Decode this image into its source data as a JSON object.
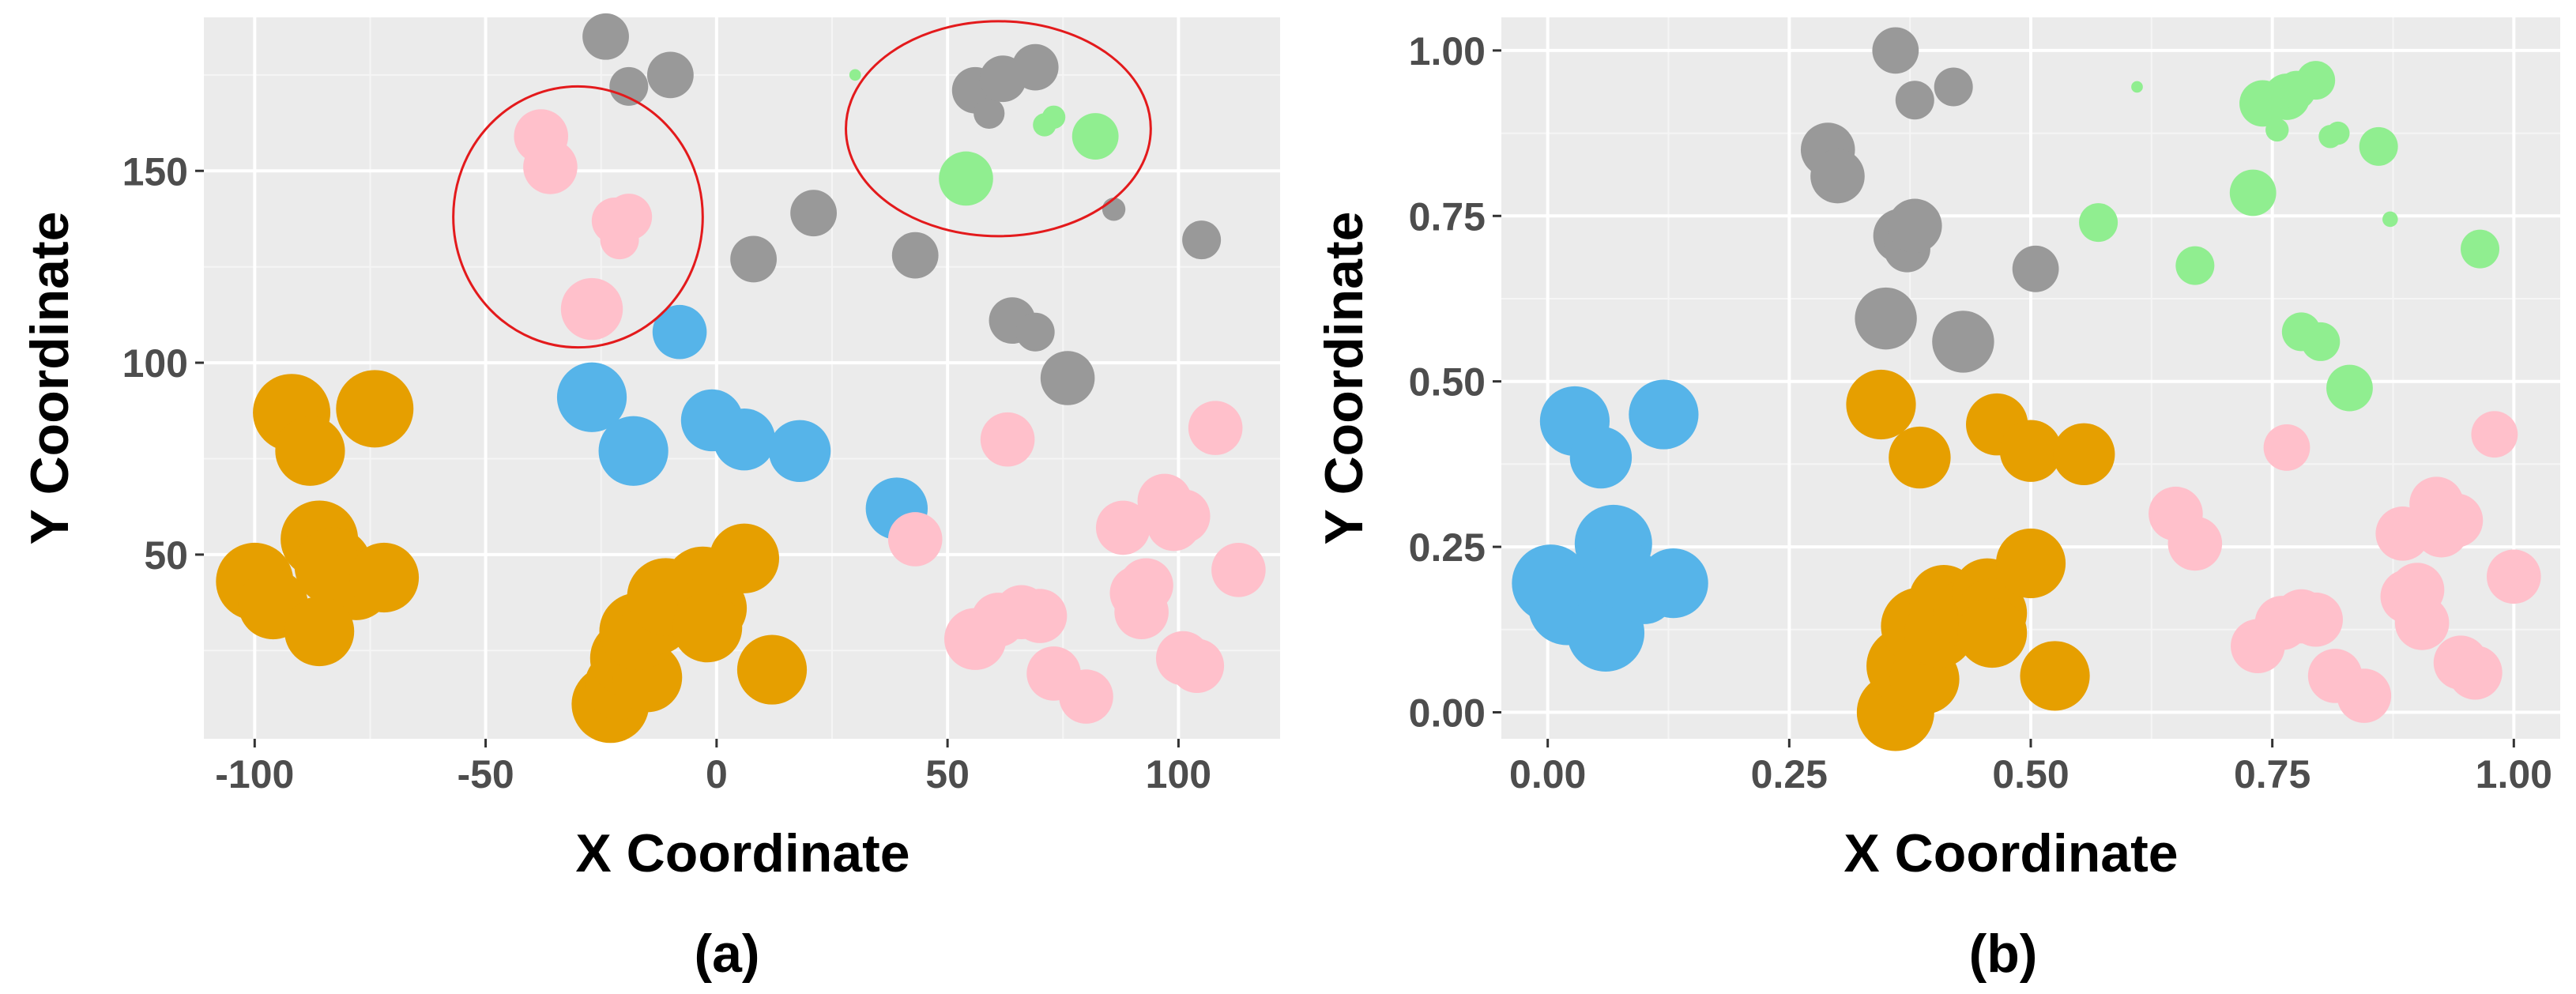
{
  "colors": {
    "panel_bg": "#EBEBEB",
    "grid_major": "#FFFFFF",
    "tick_text": "#4D4D4D",
    "highlight_ellipse": "#E31A1C"
  },
  "chart_data": [
    {
      "type": "scatter",
      "panel_label": "(a)",
      "xlabel": "X Coordinate",
      "ylabel": "Y Coordinate",
      "xlim": [
        -111,
        122
      ],
      "ylim": [
        2,
        190
      ],
      "xticks": [
        -100,
        -50,
        0,
        50,
        100
      ],
      "xtick_labels": [
        "-100",
        "-50",
        "0",
        "50",
        "100"
      ],
      "yticks": [
        50,
        100,
        150
      ],
      "ytick_labels": [
        "50",
        "100",
        "150"
      ],
      "grid": true,
      "series": [
        {
          "name": "orange",
          "color": "#E69F00",
          "points": [
            [
              -92,
              87,
              10
            ],
            [
              -88,
              77,
              9
            ],
            [
              -74,
              88,
              10
            ],
            [
              -86,
              54,
              10
            ],
            [
              -83,
              47,
              10
            ],
            [
              -78,
              42,
              9
            ],
            [
              -72,
              44,
              9
            ],
            [
              -100,
              43,
              10
            ],
            [
              -96,
              37,
              9
            ],
            [
              -86,
              30,
              9
            ],
            [
              -23,
              11,
              10
            ],
            [
              -21,
              16,
              9
            ],
            [
              -19,
              23,
              10
            ],
            [
              -15,
              18,
              9
            ],
            [
              -17,
              30,
              10
            ],
            [
              -13,
              33,
              9
            ],
            [
              -11,
              39,
              10
            ],
            [
              -3,
              42,
              10
            ],
            [
              -1,
              36,
              9
            ],
            [
              -2,
              31,
              9
            ],
            [
              6,
              49,
              9
            ],
            [
              12,
              20,
              9
            ]
          ]
        },
        {
          "name": "blue",
          "color": "#56B4E9",
          "points": [
            [
              -27,
              91,
              9
            ],
            [
              -18,
              77,
              9
            ],
            [
              -8,
              108,
              7
            ],
            [
              -1,
              85,
              8
            ],
            [
              6,
              80,
              8
            ],
            [
              18,
              77,
              8
            ],
            [
              39,
              62,
              8
            ]
          ]
        },
        {
          "name": "gray",
          "color": "#999999",
          "points": [
            [
              -24,
              185,
              6
            ],
            [
              -19,
              172,
              5
            ],
            [
              -10,
              175,
              6
            ],
            [
              8,
              127,
              6
            ],
            [
              21,
              139,
              6
            ],
            [
              43,
              128,
              6
            ],
            [
              56,
              171,
              6
            ],
            [
              59,
              165,
              4
            ],
            [
              62,
              174,
              6
            ],
            [
              69,
              177,
              6
            ],
            [
              64,
              111,
              6
            ],
            [
              69,
              108,
              5
            ],
            [
              76,
              96,
              7
            ],
            [
              86,
              140,
              3
            ],
            [
              105,
              132,
              5
            ]
          ]
        },
        {
          "name": "green",
          "color": "#90EE90",
          "points": [
            [
              30,
              175,
              1.5
            ],
            [
              54,
              148,
              7
            ],
            [
              71,
              162,
              3
            ],
            [
              73,
              164,
              3
            ],
            [
              82,
              159,
              6
            ]
          ]
        },
        {
          "name": "pink",
          "color": "#FFC0CB",
          "points": [
            [
              -38,
              159,
              7
            ],
            [
              -36,
              151,
              7
            ],
            [
              -22,
              137,
              6
            ],
            [
              -19,
              138,
              6
            ],
            [
              -21,
              132,
              5
            ],
            [
              -27,
              114,
              8
            ],
            [
              43,
              54,
              7
            ],
            [
              63,
              80,
              7
            ],
            [
              56,
              28,
              8
            ],
            [
              61,
              33,
              7
            ],
            [
              66,
              35,
              7
            ],
            [
              70,
              34,
              7
            ],
            [
              73,
              19,
              7
            ],
            [
              80,
              13,
              7
            ],
            [
              88,
              57,
              7
            ],
            [
              91,
              40,
              7
            ],
            [
              93,
              42,
              7
            ],
            [
              92,
              35,
              7
            ],
            [
              97,
              64,
              7
            ],
            [
              99,
              58,
              7
            ],
            [
              101,
              60,
              7
            ],
            [
              101,
              23,
              7
            ],
            [
              104,
              21,
              7
            ],
            [
              108,
              83,
              7
            ],
            [
              113,
              46,
              7
            ]
          ]
        }
      ],
      "annotations": [
        {
          "shape": "ellipse",
          "center": [
            -30,
            138
          ],
          "radius": [
            27,
            34
          ],
          "color": "#E31A1C"
        },
        {
          "shape": "ellipse",
          "center": [
            61,
            161
          ],
          "radius": [
            33,
            28
          ],
          "color": "#E31A1C"
        }
      ]
    },
    {
      "type": "scatter",
      "panel_label": "(b)",
      "xlabel": "X Coordinate",
      "ylabel": "Y Coordinate",
      "xlim": [
        -0.048,
        1.048
      ],
      "ylim": [
        -0.04,
        1.05
      ],
      "xticks": [
        0,
        0.25,
        0.5,
        0.75,
        1
      ],
      "xtick_labels": [
        "0.00",
        "0.25",
        "0.50",
        "0.75",
        "1.00"
      ],
      "yticks": [
        0,
        0.25,
        0.5,
        0.75,
        1
      ],
      "ytick_labels": [
        "0.00",
        "0.25",
        "0.50",
        "0.75",
        "1.00"
      ],
      "grid": true,
      "series": [
        {
          "name": "blue",
          "color": "#56B4E9",
          "points": [
            [
              0.003,
              0.195,
              10
            ],
            [
              0.02,
              0.16,
              10
            ],
            [
              0.028,
              0.44,
              9
            ],
            [
              0.045,
              0.195,
              8
            ],
            [
              0.055,
              0.385,
              8
            ],
            [
              0.06,
              0.12,
              10
            ],
            [
              0.068,
              0.255,
              10
            ],
            [
              0.075,
              0.21,
              9
            ],
            [
              0.1,
              0.18,
              8
            ],
            [
              0.12,
              0.45,
              9
            ],
            [
              0.13,
              0.195,
              9
            ]
          ]
        },
        {
          "name": "orange",
          "color": "#E69F00",
          "points": [
            [
              0.345,
              0.465,
              9
            ],
            [
              0.36,
              0.0,
              10
            ],
            [
              0.37,
              0.07,
              10
            ],
            [
              0.385,
              0.385,
              8
            ],
            [
              0.39,
              0.05,
              9
            ],
            [
              0.385,
              0.13,
              10
            ],
            [
              0.405,
              0.12,
              9
            ],
            [
              0.41,
              0.17,
              9
            ],
            [
              0.435,
              0.15,
              9
            ],
            [
              0.455,
              0.18,
              9
            ],
            [
              0.46,
              0.15,
              9
            ],
            [
              0.46,
              0.12,
              9
            ],
            [
              0.465,
              0.435,
              8
            ],
            [
              0.5,
              0.395,
              8
            ],
            [
              0.5,
              0.225,
              9
            ],
            [
              0.525,
              0.055,
              9
            ],
            [
              0.555,
              0.39,
              8
            ]
          ]
        },
        {
          "name": "gray",
          "color": "#999999",
          "points": [
            [
              0.29,
              0.85,
              7
            ],
            [
              0.3,
              0.81,
              7
            ],
            [
              0.36,
              1.0,
              6
            ],
            [
              0.35,
              0.595,
              8
            ],
            [
              0.365,
              0.72,
              7
            ],
            [
              0.372,
              0.7,
              6
            ],
            [
              0.38,
              0.735,
              7
            ],
            [
              0.38,
              0.925,
              5
            ],
            [
              0.42,
              0.945,
              5
            ],
            [
              0.43,
              0.56,
              8
            ],
            [
              0.505,
              0.67,
              6
            ]
          ]
        },
        {
          "name": "green",
          "color": "#90EE90",
          "points": [
            [
              0.61,
              0.945,
              1.5
            ],
            [
              0.57,
              0.74,
              5
            ],
            [
              0.67,
              0.675,
              5
            ],
            [
              0.73,
              0.785,
              6
            ],
            [
              0.74,
              0.92,
              6
            ],
            [
              0.755,
              0.88,
              3
            ],
            [
              0.765,
              0.93,
              6
            ],
            [
              0.775,
              0.94,
              5
            ],
            [
              0.78,
              0.575,
              5
            ],
            [
              0.795,
              0.955,
              5
            ],
            [
              0.8,
              0.56,
              5
            ],
            [
              0.81,
              0.87,
              3
            ],
            [
              0.818,
              0.875,
              3
            ],
            [
              0.83,
              0.49,
              6
            ],
            [
              0.86,
              0.855,
              5
            ],
            [
              0.872,
              0.745,
              2
            ],
            [
              0.965,
              0.7,
              5
            ]
          ]
        },
        {
          "name": "pink",
          "color": "#FFC0CB",
          "points": [
            [
              0.65,
              0.3,
              7
            ],
            [
              0.67,
              0.255,
              7
            ],
            [
              0.735,
              0.1,
              7
            ],
            [
              0.76,
              0.135,
              7
            ],
            [
              0.765,
              0.4,
              6
            ],
            [
              0.78,
              0.145,
              7
            ],
            [
              0.795,
              0.14,
              7
            ],
            [
              0.815,
              0.055,
              7
            ],
            [
              0.845,
              0.025,
              7
            ],
            [
              0.885,
              0.27,
              7
            ],
            [
              0.89,
              0.175,
              7
            ],
            [
              0.9,
              0.185,
              7
            ],
            [
              0.905,
              0.135,
              7
            ],
            [
              0.92,
              0.315,
              7
            ],
            [
              0.925,
              0.275,
              7
            ],
            [
              0.94,
              0.29,
              7
            ],
            [
              0.945,
              0.075,
              7
            ],
            [
              0.96,
              0.06,
              7
            ],
            [
              0.98,
              0.42,
              6
            ],
            [
              1.0,
              0.205,
              7
            ]
          ]
        }
      ],
      "annotations": []
    }
  ]
}
